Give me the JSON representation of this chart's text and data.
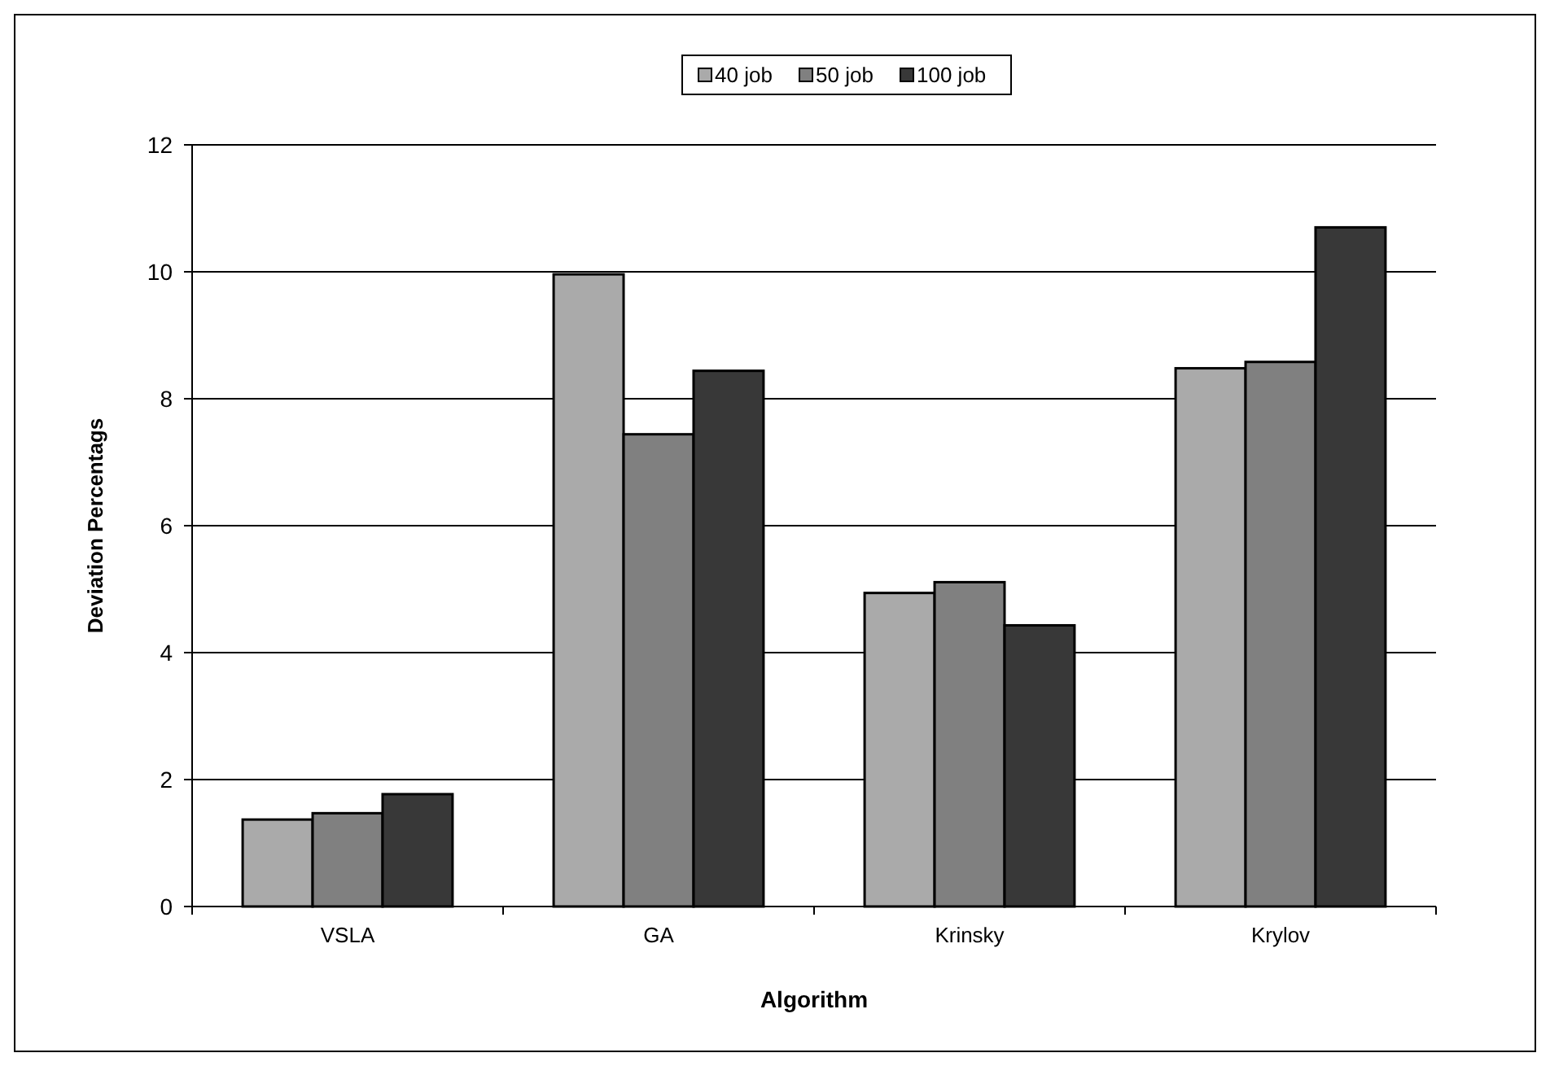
{
  "chart_data": {
    "type": "bar",
    "xlabel": "Algorithm",
    "ylabel": "Deviation Percentags",
    "categories": [
      "VSLA",
      "GA",
      "Krinsky",
      "Krylov"
    ],
    "series": [
      {
        "name": "40 job",
        "color": "#aaaaaa",
        "values": [
          1.37,
          9.96,
          4.94,
          8.48
        ]
      },
      {
        "name": "50 job",
        "color": "#808080",
        "values": [
          1.47,
          7.44,
          5.11,
          8.58
        ]
      },
      {
        "name": "100 job",
        "color": "#383838",
        "values": [
          1.77,
          8.44,
          4.43,
          10.7
        ]
      }
    ],
    "ylim": [
      0,
      12
    ],
    "yticks": [
      0,
      2,
      4,
      6,
      8,
      10,
      12
    ],
    "grid": "y",
    "legend": "top"
  }
}
